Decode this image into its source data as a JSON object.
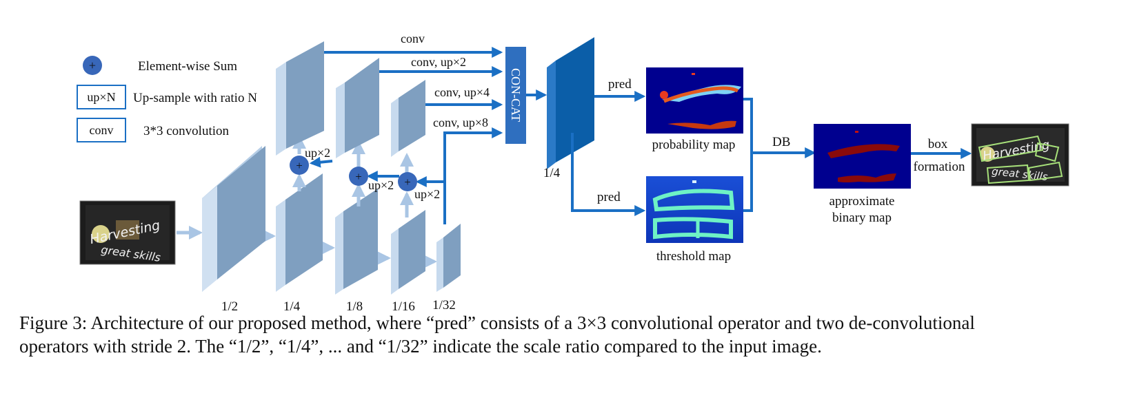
{
  "legend": {
    "sum_symbol": "+",
    "sum_label": "Element-wise Sum",
    "upsample_box": "up×N",
    "upsample_label": "Up-sample with ratio N",
    "conv_box": "conv",
    "conv_label": "3*3 convolution"
  },
  "backbone_scales": [
    "1/2",
    "1/4",
    "1/8",
    "1/16",
    "1/32"
  ],
  "fpn": {
    "up_labels": [
      "up×2",
      "up×2",
      "up×2"
    ],
    "branch_labels": [
      "conv",
      "conv, up×2",
      "conv, up×4",
      "conv, up×8"
    ],
    "concat_label": "CON-CAT"
  },
  "feature_scale": "1/4",
  "pred_labels": [
    "pred",
    "pred"
  ],
  "maps": {
    "probability": "probability map",
    "threshold": "threshold map",
    "approximate_line1": "approximate",
    "approximate_line2": "binary map"
  },
  "db_label": "DB",
  "box_formation_line1": "box",
  "box_formation_line2": "formation",
  "sample_text_top": "Harvesting",
  "sample_text_bottom": "great skills",
  "caption": {
    "line1": "Figure 3: Architecture of our proposed method, where “pred” consists of a 3×3 convolutional operator and two de-convolutional",
    "line2": "operators with stride 2. The “1/2”, “1/4”, ... and “1/32” indicate the scale ratio compared to the input image."
  },
  "colors": {
    "feature_map": "#7f9fc0",
    "feature_side": "#b5cde6",
    "arrow": "#1a6fc4",
    "arrow_light": "#a9c5e4",
    "concat": "#2f6fbf",
    "fused": "#0b5ea8",
    "sum_node": "#3867b9",
    "heat_bg": "#00008f"
  }
}
